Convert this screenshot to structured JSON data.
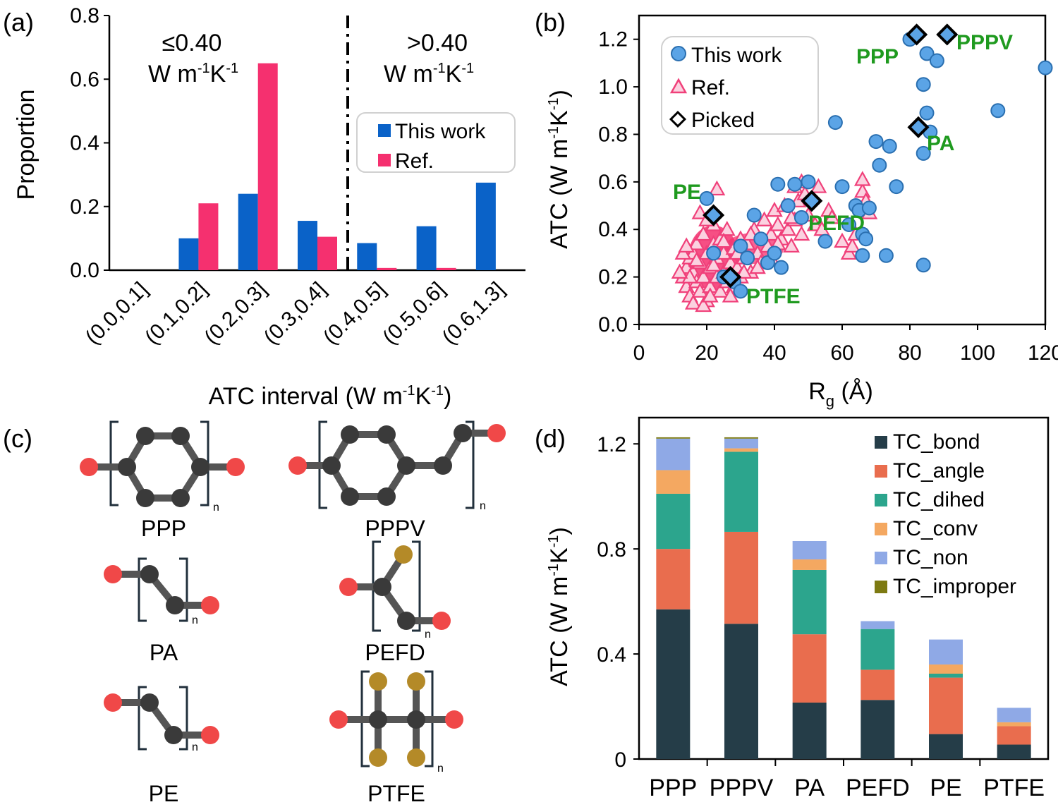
{
  "panels": {
    "a": "(a)",
    "b": "(b)",
    "c": "(c)",
    "d": "(d)"
  },
  "colors": {
    "blue": "#0a62c8",
    "pink": "#f5306f",
    "scatter_blue": "#5ba4e6",
    "tc_bond": "#253d48",
    "tc_angle": "#e96d4e",
    "tc_dihed": "#2ca58d",
    "tc_conv": "#f4a861",
    "tc_non": "#8fa9e6",
    "tc_improper": "#7d7a12",
    "label_green": "#1f9a1f"
  },
  "chart_data": [
    {
      "id": "a",
      "type": "bar",
      "ylabel": "Proportion",
      "xlabel_main": "ATC interval (W m",
      "xlabel_sup1": "-1",
      "xlabel_mid": "K",
      "xlabel_sup2": "-1",
      "xlabel_end": ")",
      "ylim": [
        0,
        0.8
      ],
      "yticks": [
        "0.0",
        "0.2",
        "0.4",
        "0.6",
        "0.8"
      ],
      "categories": [
        "(0.0,0.1]",
        "(0.1,0.2]",
        "(0.2,0.3]",
        "(0.3,0.4]",
        "(0.4,0.5]",
        "(0.5,0.6]",
        "(0.6,1.3]"
      ],
      "series": [
        {
          "name": "This work",
          "values": [
            0.0,
            0.1,
            0.24,
            0.155,
            0.085,
            0.138,
            0.275
          ]
        },
        {
          "name": "Ref.",
          "values": [
            0.0,
            0.21,
            0.65,
            0.105,
            0.007,
            0.007,
            0.0
          ]
        }
      ],
      "region_left": {
        "line1": "≤0.40",
        "line2": "W m",
        "sup1": "-1",
        "mid": "K",
        "sup2": "-1"
      },
      "region_right": {
        "line1": ">0.40",
        "line2": "W m",
        "sup1": "-1",
        "mid": "K",
        "sup2": "-1"
      },
      "threshold": 0.4,
      "legend": {
        "position": "right",
        "entries": [
          "This work",
          "Ref."
        ]
      }
    },
    {
      "id": "b",
      "type": "scatter",
      "xlabel": "R",
      "xlabel_sub": "g",
      "xlabel_unit": " (Å)",
      "ylabel": "ATC (W m",
      "ylabel_sup1": "-1",
      "ylabel_mid": "K",
      "ylabel_sup2": "-1",
      "ylabel_end": ")",
      "xlim": [
        0,
        120
      ],
      "ylim": [
        0,
        1.3
      ],
      "xticks": [
        "0",
        "20",
        "40",
        "60",
        "80",
        "100",
        "120"
      ],
      "yticks": [
        "0.0",
        "0.2",
        "0.4",
        "0.6",
        "0.8",
        "1.0",
        "1.2"
      ],
      "legend": {
        "position": "top-left",
        "entries": [
          "This work",
          "Ref.",
          "Picked"
        ]
      },
      "this_work": [
        [
          20,
          0.53
        ],
        [
          22,
          0.3
        ],
        [
          25,
          0.2
        ],
        [
          28,
          0.18
        ],
        [
          30,
          0.14
        ],
        [
          32,
          0.28
        ],
        [
          34,
          0.46
        ],
        [
          38,
          0.26
        ],
        [
          40,
          0.3
        ],
        [
          42,
          0.24
        ],
        [
          41,
          0.59
        ],
        [
          44,
          0.5
        ],
        [
          46,
          0.59
        ],
        [
          48,
          0.45
        ],
        [
          50,
          0.6
        ],
        [
          55,
          0.35
        ],
        [
          58,
          0.85
        ],
        [
          60,
          0.58
        ],
        [
          62,
          0.42
        ],
        [
          64,
          0.5
        ],
        [
          65,
          0.48
        ],
        [
          66,
          0.38
        ],
        [
          67,
          0.36
        ],
        [
          68,
          0.49
        ],
        [
          70,
          0.77
        ],
        [
          71,
          0.67
        ],
        [
          73,
          0.29
        ],
        [
          74,
          0.75
        ],
        [
          76,
          0.58
        ],
        [
          80,
          1.2
        ],
        [
          84,
          1.01
        ],
        [
          84,
          0.72
        ],
        [
          85,
          0.89
        ],
        [
          86,
          0.81
        ],
        [
          85,
          1.14
        ],
        [
          88,
          1.11
        ],
        [
          84,
          0.25
        ],
        [
          106,
          0.9
        ],
        [
          120,
          1.08
        ],
        [
          66,
          0.29
        ],
        [
          30,
          0.33
        ],
        [
          36,
          0.36
        ]
      ],
      "refs": [
        [
          13,
          0.2
        ],
        [
          14,
          0.24
        ],
        [
          14,
          0.16
        ],
        [
          15,
          0.28
        ],
        [
          15,
          0.12
        ],
        [
          16,
          0.3
        ],
        [
          16,
          0.22
        ],
        [
          17,
          0.18
        ],
        [
          17,
          0.34
        ],
        [
          18,
          0.26
        ],
        [
          18,
          0.14
        ],
        [
          19,
          0.38
        ],
        [
          19,
          0.2
        ],
        [
          20,
          0.3
        ],
        [
          20,
          0.1
        ],
        [
          21,
          0.24
        ],
        [
          21,
          0.16
        ],
        [
          22,
          0.42
        ],
        [
          22,
          0.34
        ],
        [
          23,
          0.2
        ],
        [
          23,
          0.28
        ],
        [
          24,
          0.14
        ],
        [
          24,
          0.36
        ],
        [
          25,
          0.22
        ],
        [
          25,
          0.3
        ],
        [
          26,
          0.18
        ],
        [
          26,
          0.4
        ],
        [
          27,
          0.26
        ],
        [
          28,
          0.32
        ],
        [
          28,
          0.16
        ],
        [
          29,
          0.24
        ],
        [
          30,
          0.36
        ],
        [
          30,
          0.2
        ],
        [
          31,
          0.28
        ],
        [
          32,
          0.34
        ],
        [
          33,
          0.22
        ],
        [
          34,
          0.4
        ],
        [
          35,
          0.3
        ],
        [
          36,
          0.26
        ],
        [
          37,
          0.44
        ],
        [
          38,
          0.33
        ],
        [
          39,
          0.38
        ],
        [
          40,
          0.48
        ],
        [
          41,
          0.42
        ],
        [
          42,
          0.36
        ],
        [
          43,
          0.5
        ],
        [
          44,
          0.4
        ],
        [
          45,
          0.33
        ],
        [
          46,
          0.44
        ],
        [
          47,
          0.52
        ],
        [
          48,
          0.38
        ],
        [
          50,
          0.46
        ],
        [
          52,
          0.42
        ],
        [
          54,
          0.4
        ],
        [
          56,
          0.48
        ],
        [
          18,
          0.47
        ],
        [
          23,
          0.57
        ],
        [
          16,
          0.09
        ],
        [
          19,
          0.08
        ],
        [
          21,
          0.12
        ],
        [
          15,
          0.2
        ],
        [
          17,
          0.27
        ],
        [
          12,
          0.22
        ],
        [
          13,
          0.3
        ],
        [
          14,
          0.33
        ],
        [
          20,
          0.44
        ],
        [
          22,
          0.25
        ],
        [
          25,
          0.35
        ],
        [
          27,
          0.12
        ],
        [
          29,
          0.3
        ],
        [
          31,
          0.22
        ],
        [
          33,
          0.38
        ],
        [
          35,
          0.24
        ],
        [
          39,
          0.28
        ],
        [
          41,
          0.34
        ],
        [
          45,
          0.45
        ],
        [
          49,
          0.55
        ],
        [
          53,
          0.58
        ],
        [
          57,
          0.45
        ],
        [
          60,
          0.35
        ],
        [
          62,
          0.3
        ],
        [
          63,
          0.33
        ],
        [
          64,
          0.38
        ],
        [
          66,
          0.56
        ],
        [
          66,
          0.61
        ],
        [
          67,
          0.52
        ],
        [
          68,
          0.47
        ],
        [
          46,
          0.58
        ],
        [
          48,
          0.6
        ]
      ],
      "picked": [
        {
          "name": "PPP",
          "x": 82,
          "y": 1.22
        },
        {
          "name": "PPPV",
          "x": 91,
          "y": 1.22
        },
        {
          "name": "PA",
          "x": 82.5,
          "y": 0.83
        },
        {
          "name": "PEFD",
          "x": 51,
          "y": 0.52
        },
        {
          "name": "PE",
          "x": 22,
          "y": 0.46
        },
        {
          "name": "PTFE",
          "x": 27,
          "y": 0.2
        }
      ]
    },
    {
      "id": "d",
      "type": "bar",
      "stacked": true,
      "ylabel": "ATC (W m",
      "ylabel_sup1": "-1",
      "ylabel_mid": "K",
      "ylabel_sup2": "-1",
      "ylabel_end": ")",
      "ylim": [
        0,
        1.3
      ],
      "yticks": [
        "0",
        "0.4",
        "0.8",
        "1.2"
      ],
      "categories": [
        "PPP",
        "PPPV",
        "PA",
        "PEFD",
        "PE",
        "PTFE"
      ],
      "series": [
        {
          "name": "TC_bond",
          "values": [
            0.57,
            0.515,
            0.215,
            0.225,
            0.095,
            0.055
          ]
        },
        {
          "name": "TC_angle",
          "values": [
            0.23,
            0.35,
            0.26,
            0.115,
            0.215,
            0.07
          ]
        },
        {
          "name": "TC_dihed",
          "values": [
            0.21,
            0.305,
            0.245,
            0.155,
            0.015,
            0.0
          ]
        },
        {
          "name": "TC_conv",
          "values": [
            0.09,
            0.013,
            0.04,
            0.0,
            0.035,
            0.015
          ]
        },
        {
          "name": "TC_non",
          "values": [
            0.12,
            0.037,
            0.07,
            0.03,
            0.095,
            0.055
          ]
        },
        {
          "name": "TC_improper",
          "values": [
            0.005,
            0.005,
            0.0,
            0.0,
            0.0,
            0.0
          ]
        }
      ],
      "legend": {
        "position": "top-right",
        "entries": [
          "TC_bond",
          "TC_angle",
          "TC_dihed",
          "TC_conv",
          "TC_non",
          "TC_improper"
        ]
      }
    }
  ],
  "molecules": {
    "ppp": "PPP",
    "pppv": "PPPV",
    "pa": "PA",
    "pefd": "PEFD",
    "pe": "PE",
    "ptfe": "PTFE",
    "n": "n"
  }
}
